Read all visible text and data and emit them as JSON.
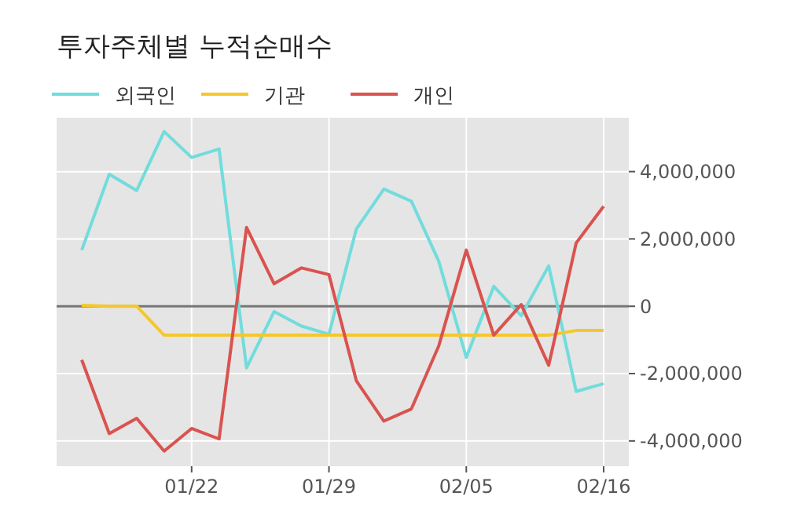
{
  "chart_data": {
    "type": "line",
    "title": "투자주체별 누적순매수",
    "categories": [
      null,
      null,
      null,
      null,
      "01/22",
      null,
      null,
      null,
      null,
      "01/29",
      null,
      null,
      null,
      null,
      "02/05",
      null,
      null,
      null,
      null,
      "02/16"
    ],
    "series": [
      {
        "name": "외국인",
        "color": "#72dcdc",
        "values": [
          1670000.0,
          3920000.0,
          3440000.0,
          5190000.0,
          4420000.0,
          4670000.0,
          -1830000.0,
          -160000.0,
          -590000.0,
          -830000.0,
          2300000.0,
          3480000.0,
          3120000.0,
          1330000.0,
          -1520000.0,
          590000.0,
          -280000.0,
          1200000.0,
          -2530000.0,
          -2300000.0
        ]
      },
      {
        "name": "기관",
        "color": "#f5c72a",
        "values": [
          30000.0,
          0,
          0,
          -860000.0,
          -860000.0,
          -860000.0,
          -860000.0,
          -860000.0,
          -860000.0,
          -860000.0,
          -860000.0,
          -860000.0,
          -860000.0,
          -860000.0,
          -860000.0,
          -860000.0,
          -860000.0,
          -860000.0,
          -720000.0,
          -720000.0
        ]
      },
      {
        "name": "개인",
        "color": "#d9534f",
        "values": [
          -1590000.0,
          -3780000.0,
          -3330000.0,
          -4300000.0,
          -3630000.0,
          -3940000.0,
          2340000.0,
          670000.0,
          1140000.0,
          940000.0,
          -2220000.0,
          -3410000.0,
          -3050000.0,
          -1170000.0,
          1670000.0,
          -860000.0,
          50000.0,
          -1750000.0,
          1880000.0,
          2970000.0
        ]
      }
    ],
    "ylim": [
      -4750000.0,
      5600000.0
    ],
    "yticks": [
      {
        "value": -4000000,
        "label": "-4,000,000"
      },
      {
        "value": -2000000,
        "label": "-2,000,000"
      },
      0,
      {
        "value": 2000000,
        "label": "2,000,000"
      },
      {
        "value": 4000000,
        "label": "4,000,000"
      }
    ],
    "ref_lines": [
      {
        "axis": "y",
        "value": 0,
        "color": "#777777"
      }
    ],
    "grid": true,
    "legend": "top left",
    "line_style": "solid",
    "marker": "none"
  }
}
